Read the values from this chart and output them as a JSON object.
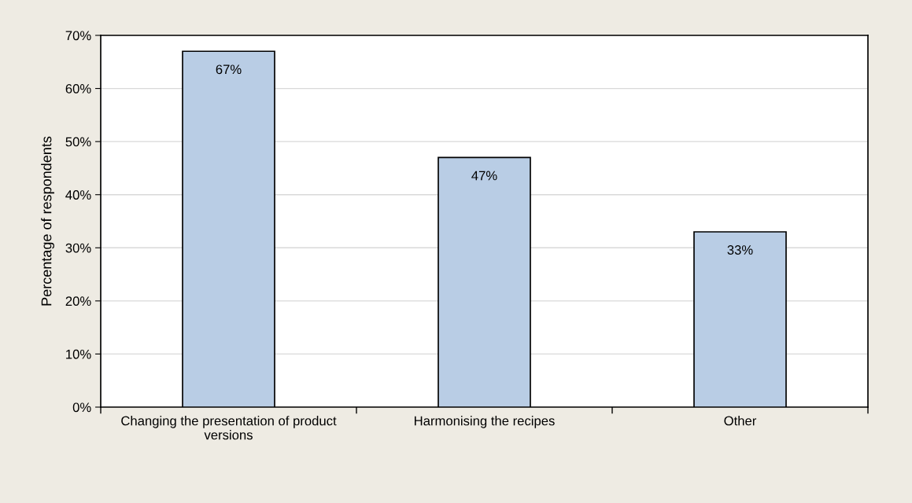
{
  "chart_data": {
    "type": "bar",
    "ylabel": "Percentage of respondents",
    "categories": [
      "Changing the presentation of product versions",
      "Harmonising the recipes",
      "Other"
    ],
    "values": [
      67,
      47,
      33
    ],
    "value_labels": [
      "67%",
      "47%",
      "33%"
    ],
    "color": "#b9cde5",
    "ylim": [
      0,
      70
    ],
    "yticks": [
      {
        "value": 0,
        "label": "0%"
      },
      {
        "value": 10,
        "label": "10%"
      },
      {
        "value": 20,
        "label": "20%"
      },
      {
        "value": 30,
        "label": "30%"
      },
      {
        "value": 40,
        "label": "40%"
      },
      {
        "value": 50,
        "label": "50%"
      },
      {
        "value": 60,
        "label": "60%"
      },
      {
        "value": 70,
        "label": "70%"
      }
    ],
    "grid": "y",
    "legend": false
  }
}
